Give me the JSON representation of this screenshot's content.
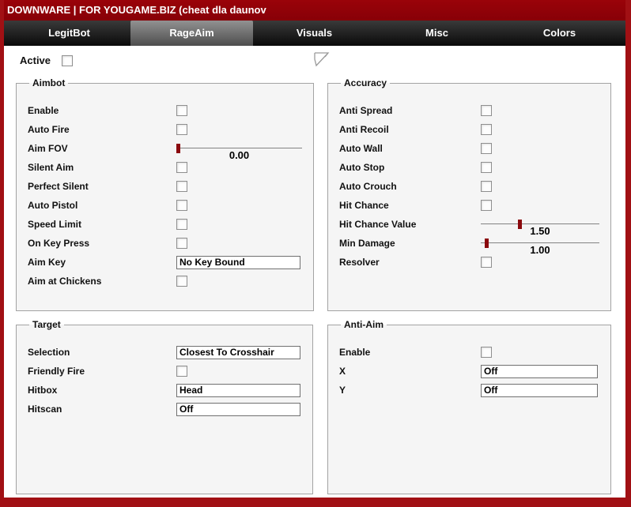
{
  "window": {
    "title": "DOWNWARE | FOR YOUGAME.BIZ (cheat dla daunov"
  },
  "tabs": [
    {
      "label": "LegitBot",
      "selected": false
    },
    {
      "label": "RageAim",
      "selected": true
    },
    {
      "label": "Visuals",
      "selected": false
    },
    {
      "label": "Misc",
      "selected": false
    },
    {
      "label": "Colors",
      "selected": false
    }
  ],
  "active": {
    "label": "Active",
    "checked": false
  },
  "aimbot": {
    "title": "Aimbot",
    "enable": {
      "label": "Enable",
      "checked": false
    },
    "auto_fire": {
      "label": "Auto Fire",
      "checked": false
    },
    "aim_fov": {
      "label": "Aim FOV",
      "value": "0.00",
      "percent": 0
    },
    "silent_aim": {
      "label": "Silent Aim",
      "checked": false
    },
    "perfect_silent": {
      "label": "Perfect Silent",
      "checked": false
    },
    "auto_pistol": {
      "label": "Auto Pistol",
      "checked": false
    },
    "speed_limit": {
      "label": "Speed Limit",
      "checked": false
    },
    "on_key_press": {
      "label": "On Key Press",
      "checked": false
    },
    "aim_key": {
      "label": "Aim Key",
      "value": "No Key Bound"
    },
    "aim_at_chickens": {
      "label": "Aim at Chickens",
      "checked": false
    }
  },
  "accuracy": {
    "title": "Accuracy",
    "anti_spread": {
      "label": "Anti Spread",
      "checked": false
    },
    "anti_recoil": {
      "label": "Anti Recoil",
      "checked": false
    },
    "auto_wall": {
      "label": "Auto Wall",
      "checked": false
    },
    "auto_stop": {
      "label": "Auto Stop",
      "checked": false
    },
    "auto_crouch": {
      "label": "Auto Crouch",
      "checked": false
    },
    "hit_chance": {
      "label": "Hit Chance",
      "checked": false
    },
    "hit_chance_value": {
      "label": "Hit Chance Value",
      "value": "1.50",
      "percent": 31
    },
    "min_damage": {
      "label": "Min Damage",
      "value": "1.00",
      "percent": 3
    },
    "resolver": {
      "label": "Resolver",
      "checked": false
    }
  },
  "target": {
    "title": "Target",
    "selection": {
      "label": "Selection",
      "value": "Closest To Crosshair"
    },
    "friendly_fire": {
      "label": "Friendly Fire",
      "checked": false
    },
    "hitbox": {
      "label": "Hitbox",
      "value": "Head"
    },
    "hitscan": {
      "label": "Hitscan",
      "value": "Off"
    }
  },
  "anti_aim": {
    "title": "Anti-Aim",
    "enable": {
      "label": "Enable",
      "checked": false
    },
    "x": {
      "label": "X",
      "value": "Off"
    },
    "y": {
      "label": "Y",
      "value": "Off"
    }
  },
  "colors": {
    "titlebar": "#8e0105",
    "window_border": "#a11014",
    "slider_handle": "#8b0a0e",
    "group_bg": "#f5f5f5",
    "group_border": "#a3a3a3"
  }
}
